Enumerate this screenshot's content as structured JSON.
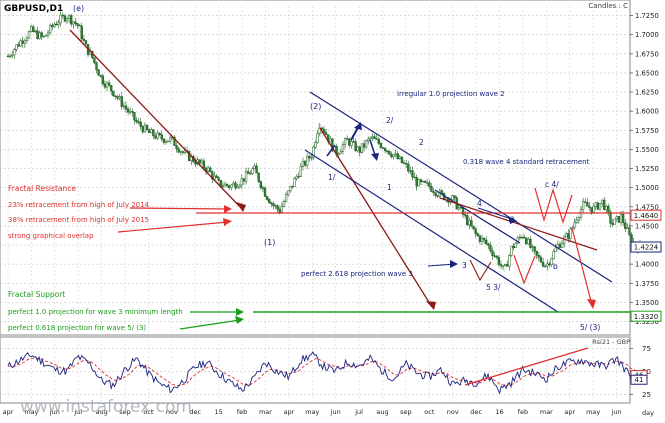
{
  "chart_data": {
    "type": "line",
    "title": "GBPUSD,D1",
    "corner_label": "Candles : C",
    "watermark": "www.instaforex.com",
    "indicator_title": "Rsi21 - GBP",
    "x_tick_labels": [
      "apr",
      "may",
      "jun",
      "jul",
      "aug",
      "sep",
      "oct",
      "nov",
      "dec",
      "15",
      "feb",
      "mar",
      "apr",
      "may",
      "jun",
      "jul",
      "aug",
      "sep",
      "oct",
      "nov",
      "dec",
      "16",
      "feb",
      "mar",
      "apr",
      "may",
      "jun",
      "day"
    ],
    "price_axis": {
      "min": 1.31,
      "max": 1.7375,
      "ticks": [
        "1.7250",
        "1.7000",
        "1.6750",
        "1.6500",
        "1.6250",
        "1.6000",
        "1.5750",
        "1.5500",
        "1.5250",
        "1.5000",
        "1.4750",
        "1.4500",
        "1.4250",
        "1.4000",
        "1.3750",
        "1.3500",
        "1.3250"
      ]
    },
    "rsi_axis": {
      "min": 18,
      "max": 84,
      "ticks": [
        "75",
        "50",
        "25"
      ]
    },
    "price_markers": [
      {
        "label": "1.4640",
        "value": 1.464,
        "color": "#e03030"
      },
      {
        "label": "1.4224",
        "value": 1.4224,
        "color": "#1a237e"
      },
      {
        "label": "1.3320",
        "value": 1.332,
        "color": "#1b9e1b"
      }
    ],
    "rsi_markers": [
      {
        "label": "46",
        "value": 46,
        "color": "#e03030"
      },
      {
        "label": "41",
        "value": 41,
        "color": "#1a237e"
      }
    ],
    "price_series": {
      "name": "GBPUSD",
      "x": [
        0,
        0.5,
        1,
        1.5,
        2,
        2.5,
        3,
        3.3,
        3.6,
        4,
        4.5,
        5,
        5.5,
        6,
        6.5,
        7,
        7.5,
        8,
        8.5,
        9,
        9.5,
        10,
        10.5,
        11,
        11.3,
        11.6,
        12,
        12.5,
        13,
        13.3,
        13.6,
        14,
        14.5,
        15,
        15.5,
        16,
        16.5,
        17,
        17.5,
        18,
        18.5,
        19,
        19.5,
        20,
        20.5,
        21,
        21.2,
        21.5,
        22,
        22.5,
        23,
        23.5,
        24,
        24.3,
        24.6,
        25,
        25.4,
        25.8,
        26.2,
        26.6,
        27
      ],
      "y": [
        1.672,
        1.69,
        1.705,
        1.695,
        1.715,
        1.725,
        1.712,
        1.685,
        1.67,
        1.642,
        1.625,
        1.605,
        1.585,
        1.572,
        1.565,
        1.562,
        1.545,
        1.535,
        1.525,
        1.505,
        1.502,
        1.51,
        1.525,
        1.492,
        1.478,
        1.47,
        1.495,
        1.525,
        1.545,
        1.585,
        1.57,
        1.545,
        1.562,
        1.548,
        1.565,
        1.555,
        1.542,
        1.528,
        1.505,
        1.502,
        1.49,
        1.485,
        1.462,
        1.438,
        1.425,
        1.402,
        1.39,
        1.42,
        1.44,
        1.412,
        1.398,
        1.425,
        1.44,
        1.462,
        1.478,
        1.472,
        1.482,
        1.452,
        1.462,
        1.432,
        1.422
      ]
    },
    "rsi_series": {
      "name": "RSI",
      "x": [
        0,
        0.5,
        1,
        1.5,
        2,
        2.5,
        3,
        3.5,
        4,
        4.5,
        5,
        5.5,
        6,
        6.5,
        7,
        7.5,
        8,
        8.5,
        9,
        9.5,
        10,
        10.5,
        11,
        11.5,
        12,
        12.5,
        13,
        13.5,
        14,
        14.5,
        15,
        15.5,
        16,
        16.5,
        17,
        17.5,
        18,
        18.5,
        19,
        19.5,
        20,
        20.5,
        21,
        21.5,
        22,
        22.5,
        23,
        23.5,
        24,
        24.5,
        25,
        25.5,
        26,
        26.5,
        27
      ],
      "y": [
        55,
        62,
        68,
        60,
        52,
        50,
        66,
        58,
        40,
        35,
        52,
        64,
        48,
        36,
        30,
        40,
        55,
        60,
        48,
        38,
        30,
        42,
        60,
        50,
        44,
        62,
        68,
        55,
        50,
        60,
        56,
        64,
        50,
        42,
        58,
        48,
        44,
        52,
        36,
        40,
        38,
        46,
        30,
        38,
        52,
        48,
        42,
        55,
        60,
        62,
        58,
        56,
        64,
        48,
        41
      ]
    },
    "annotations": [
      {
        "id": "e",
        "text": "(e)",
        "color": "#1a237e"
      },
      {
        "id": "w2",
        "text": "(2)",
        "color": "#1a237e"
      },
      {
        "id": "w1",
        "text": "(1)",
        "color": "#1a237e"
      },
      {
        "id": "irregular",
        "text": "irregular 1.0 projection wave 2",
        "color": "#1a237e"
      },
      {
        "id": "two_slash",
        "text": "2/",
        "color": "#1a237e"
      },
      {
        "id": "two",
        "text": "2",
        "color": "#1a237e"
      },
      {
        "id": "one_slash",
        "text": "1/",
        "color": "#1a237e"
      },
      {
        "id": "one",
        "text": "1",
        "color": "#1a237e"
      },
      {
        "id": "retr318",
        "text": "0.318 wave 4 standard retracement",
        "color": "#1a237e"
      },
      {
        "id": "c4",
        "text": "c 4/",
        "color": "#1a237e"
      },
      {
        "id": "four",
        "text": "4",
        "color": "#1a237e"
      },
      {
        "id": "a",
        "text": "a",
        "color": "#1a237e"
      },
      {
        "id": "b",
        "text": "b",
        "color": "#1a237e"
      },
      {
        "id": "three",
        "text": "3",
        "color": "#1a237e"
      },
      {
        "id": "five_three",
        "text": "5 3/",
        "color": "#1a237e"
      },
      {
        "id": "proj2618",
        "text": "perfect 2.618 projection wave 3",
        "color": "#1a237e"
      },
      {
        "id": "five_three_bottom",
        "text": "5/ (3)",
        "color": "#1a237e"
      },
      {
        "id": "fractal_res",
        "text": "Fractal Resistance",
        "color": "#e03030"
      },
      {
        "id": "retr23",
        "text": "23% retracement from high of July 2014",
        "color": "#e03030"
      },
      {
        "id": "retr38",
        "text": "38% retracement from high of July 2015",
        "color": "#e03030"
      },
      {
        "id": "overlap",
        "text": "strong graphical overlap",
        "color": "#e03030"
      },
      {
        "id": "fractal_sup",
        "text": "Fractal Support",
        "color": "#1b9e1b"
      },
      {
        "id": "proj1",
        "text": "perfect 1.0 projection for wave 3 minimum length",
        "color": "#1b9e1b"
      },
      {
        "id": "proj0618",
        "text": "perfect 0.618 projection for wave 5/ (3)",
        "color": "#1b9e1b"
      }
    ],
    "grid": true,
    "colors": {
      "candle": "#2e7d32",
      "wave": "#1a237e",
      "resistance": "#e03030",
      "support": "#1b9e1b",
      "arrow": "#8b1a1a",
      "rsi": "#1a237e",
      "rsi_signal": "#e03030"
    }
  }
}
